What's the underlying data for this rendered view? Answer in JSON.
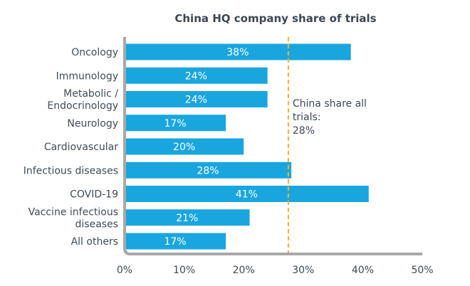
{
  "chart_data": {
    "type": "bar",
    "orientation": "horizontal",
    "title": "China HQ company share of trials",
    "categories": [
      [
        "Oncology"
      ],
      [
        "Immunology"
      ],
      [
        "Metabolic /",
        "Endocrinology"
      ],
      [
        "Neurology"
      ],
      [
        "Cardiovascular"
      ],
      [
        "Infectious diseases"
      ],
      [
        "COVID-19"
      ],
      [
        "Vaccine infectious",
        "diseases"
      ],
      [
        "All others"
      ]
    ],
    "values": [
      38,
      24,
      24,
      17,
      20,
      28,
      41,
      21,
      17
    ],
    "value_labels": [
      "38%",
      "24%",
      "24%",
      "17%",
      "20%",
      "28%",
      "41%",
      "21%",
      "17%"
    ],
    "xlim": [
      0,
      50
    ],
    "xticks": [
      0,
      10,
      20,
      30,
      40,
      50
    ],
    "xtick_labels": [
      "0%",
      "10%",
      "20%",
      "30%",
      "40%",
      "50%"
    ],
    "reference_line": {
      "value": 27.5,
      "label": [
        "China share all",
        "trials:",
        "28%"
      ]
    },
    "colors": {
      "bar": "#19a6df",
      "reference": "#f3b02b",
      "axis": "#a8a8a8"
    }
  }
}
